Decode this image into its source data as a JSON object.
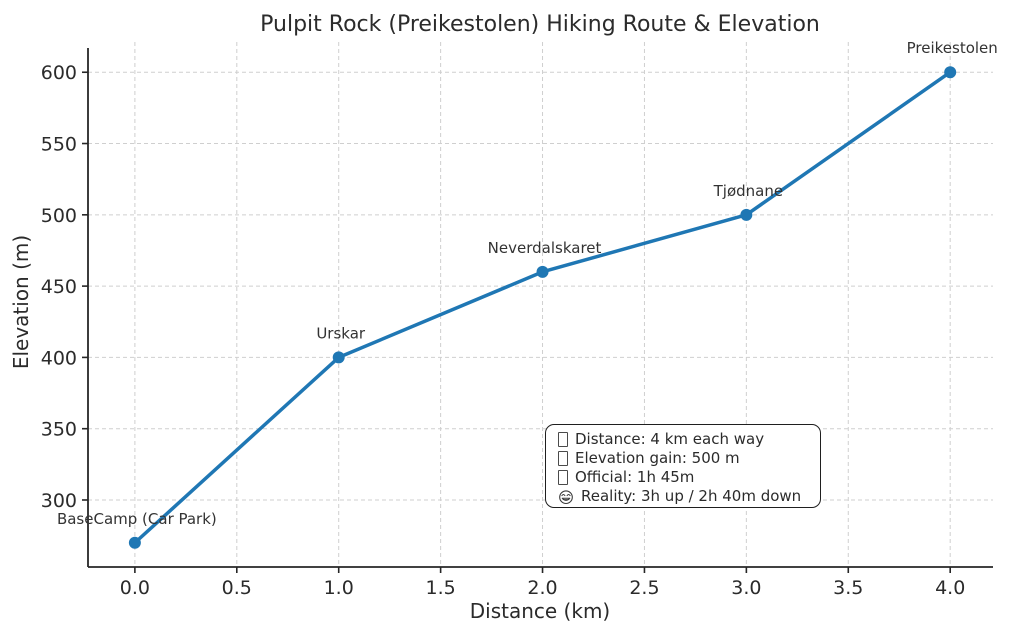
{
  "chart_data": {
    "type": "line",
    "title": "Pulpit Rock (Preikestolen) Hiking Route & Elevation",
    "xlabel": "Distance (km)",
    "ylabel": "Elevation (m)",
    "x": [
      0.0,
      1.0,
      2.0,
      3.0,
      4.0
    ],
    "y": [
      270,
      400,
      460,
      500,
      600
    ],
    "point_labels": [
      "BaseCamp (Car Park)",
      "Urskar",
      "Neverdalskaret",
      "Tjødnane",
      "Preikestolen"
    ],
    "xticks": [
      0.0,
      0.5,
      1.0,
      1.5,
      2.0,
      2.5,
      3.0,
      3.5,
      4.0
    ],
    "xtick_labels": [
      "0.0",
      "0.5",
      "1.0",
      "1.5",
      "2.0",
      "2.5",
      "3.0",
      "3.5",
      "4.0"
    ],
    "yticks": [
      300,
      350,
      400,
      450,
      500,
      550,
      600
    ],
    "ytick_labels": [
      "300",
      "350",
      "400",
      "450",
      "500",
      "550",
      "600"
    ],
    "xlim": [
      -0.23,
      4.21
    ],
    "ylim": [
      253,
      617
    ],
    "grid": true,
    "legend": "none",
    "colors": {
      "line": "#1f77b4",
      "marker": "#1f77b4",
      "grid": "#cfcfcf",
      "axis": "#262626",
      "tick_label": "#2b2b2b",
      "point_label": "#333333"
    }
  },
  "info_box": {
    "lines": [
      {
        "icon": "missing-glyph",
        "text": "Distance: 4 km each way"
      },
      {
        "icon": "missing-glyph",
        "text": "Elevation gain: 500 m"
      },
      {
        "icon": "missing-glyph",
        "text": "Official: 1h 45m"
      },
      {
        "icon": "grinning-face",
        "text": "Reality: 3h up / 2h 40m down"
      }
    ]
  }
}
